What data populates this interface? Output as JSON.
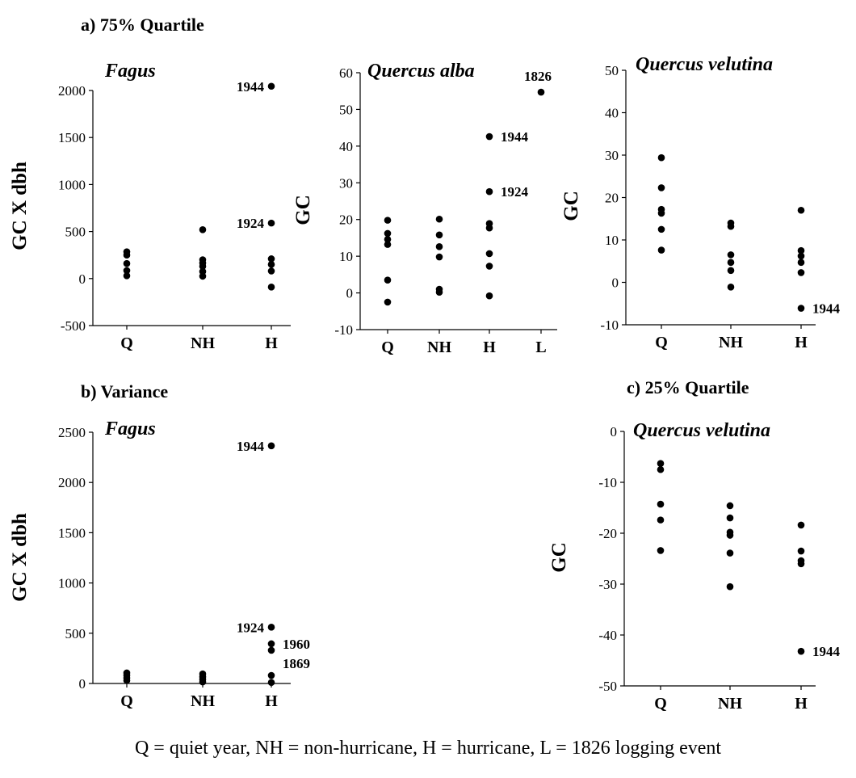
{
  "figure": {
    "caption": "Q = quiet year, NH = non-hurricane, H = hurricane, L = 1826 logging event"
  },
  "sections": [
    {
      "label": "a) 75% Quartile"
    },
    {
      "label": "b) Variance"
    },
    {
      "label": "c) 25% Quartile"
    }
  ],
  "chart_data": [
    {
      "id": "a1",
      "section": "a) 75% Quartile",
      "type": "scatter",
      "title": "Fagus",
      "ylabel": "GC X dbh",
      "categories": [
        "Q",
        "NH",
        "H"
      ],
      "ylim": [
        -500,
        2000
      ],
      "yticks": [
        -500,
        0,
        500,
        1000,
        1500,
        2000
      ],
      "points": [
        {
          "x": "Q",
          "y": 285
        },
        {
          "x": "Q",
          "y": 250
        },
        {
          "x": "Q",
          "y": 160
        },
        {
          "x": "Q",
          "y": 85
        },
        {
          "x": "Q",
          "y": 30
        },
        {
          "x": "NH",
          "y": 520
        },
        {
          "x": "NH",
          "y": 200
        },
        {
          "x": "NH",
          "y": 165
        },
        {
          "x": "NH",
          "y": 130
        },
        {
          "x": "NH",
          "y": 75
        },
        {
          "x": "NH",
          "y": 25
        },
        {
          "x": "H",
          "y": 2045
        },
        {
          "x": "H",
          "y": 590
        },
        {
          "x": "H",
          "y": 210
        },
        {
          "x": "H",
          "y": 150
        },
        {
          "x": "H",
          "y": 80
        },
        {
          "x": "H",
          "y": -90
        }
      ],
      "annotations": [
        {
          "text": "1944",
          "x": "H",
          "y": 2045,
          "side": "left"
        },
        {
          "text": "1924",
          "x": "H",
          "y": 590,
          "side": "left"
        }
      ]
    },
    {
      "id": "a2",
      "section": "a) 75% Quartile",
      "type": "scatter",
      "title": "Quercus alba",
      "ylabel": "GC",
      "categories": [
        "Q",
        "NH",
        "H",
        "L"
      ],
      "ylim": [
        -10,
        60
      ],
      "yticks": [
        -10,
        0,
        10,
        20,
        30,
        40,
        50,
        60
      ],
      "points": [
        {
          "x": "Q",
          "y": 19.8
        },
        {
          "x": "Q",
          "y": 16.2
        },
        {
          "x": "Q",
          "y": 14.6
        },
        {
          "x": "Q",
          "y": 13.2
        },
        {
          "x": "Q",
          "y": 3.5
        },
        {
          "x": "Q",
          "y": -2.5
        },
        {
          "x": "NH",
          "y": 20.1
        },
        {
          "x": "NH",
          "y": 15.8
        },
        {
          "x": "NH",
          "y": 12.6
        },
        {
          "x": "NH",
          "y": 9.8
        },
        {
          "x": "NH",
          "y": 1.0
        },
        {
          "x": "NH",
          "y": 0.2
        },
        {
          "x": "H",
          "y": 42.6
        },
        {
          "x": "H",
          "y": 27.6
        },
        {
          "x": "H",
          "y": 18.9
        },
        {
          "x": "H",
          "y": 17.7
        },
        {
          "x": "H",
          "y": 10.7
        },
        {
          "x": "H",
          "y": 7.3
        },
        {
          "x": "H",
          "y": -0.8
        },
        {
          "x": "L",
          "y": 54.7
        }
      ],
      "annotations": [
        {
          "text": "1826",
          "x": "L",
          "y": 54.7,
          "side": "above"
        },
        {
          "text": "1944",
          "x": "H",
          "y": 42.6,
          "side": "right"
        },
        {
          "text": "1924",
          "x": "H",
          "y": 27.6,
          "side": "right"
        }
      ]
    },
    {
      "id": "a3",
      "section": "a) 75% Quartile",
      "type": "scatter",
      "title": "Quercus velutina",
      "ylabel": "GC",
      "categories": [
        "Q",
        "NH",
        "H"
      ],
      "ylim": [
        -10,
        50
      ],
      "yticks": [
        -10,
        0,
        10,
        20,
        30,
        40,
        50
      ],
      "points": [
        {
          "x": "Q",
          "y": 29.4
        },
        {
          "x": "Q",
          "y": 22.3
        },
        {
          "x": "Q",
          "y": 17.2
        },
        {
          "x": "Q",
          "y": 16.3
        },
        {
          "x": "Q",
          "y": 12.5
        },
        {
          "x": "Q",
          "y": 7.6
        },
        {
          "x": "NH",
          "y": 14.0
        },
        {
          "x": "NH",
          "y": 13.2
        },
        {
          "x": "NH",
          "y": 6.5
        },
        {
          "x": "NH",
          "y": 4.7
        },
        {
          "x": "NH",
          "y": 2.8
        },
        {
          "x": "NH",
          "y": -1.1
        },
        {
          "x": "H",
          "y": 17.0
        },
        {
          "x": "H",
          "y": 7.5
        },
        {
          "x": "H",
          "y": 6.2
        },
        {
          "x": "H",
          "y": 4.7
        },
        {
          "x": "H",
          "y": 2.3
        },
        {
          "x": "H",
          "y": -6.1
        }
      ],
      "annotations": [
        {
          "text": "1944",
          "x": "H",
          "y": -6.1,
          "side": "right"
        }
      ]
    },
    {
      "id": "b1",
      "section": "b) Variance",
      "type": "scatter",
      "title": "Fagus",
      "ylabel": "GC X dbh",
      "categories": [
        "Q",
        "NH",
        "H"
      ],
      "ylim": [
        0,
        2500
      ],
      "yticks": [
        0,
        500,
        1000,
        1500,
        2000,
        2500
      ],
      "points": [
        {
          "x": "Q",
          "y": 105
        },
        {
          "x": "Q",
          "y": 80
        },
        {
          "x": "Q",
          "y": 55
        },
        {
          "x": "Q",
          "y": 30
        },
        {
          "x": "NH",
          "y": 95
        },
        {
          "x": "NH",
          "y": 65
        },
        {
          "x": "NH",
          "y": 40
        },
        {
          "x": "NH",
          "y": 15
        },
        {
          "x": "H",
          "y": 2365
        },
        {
          "x": "H",
          "y": 560
        },
        {
          "x": "H",
          "y": 395
        },
        {
          "x": "H",
          "y": 330
        },
        {
          "x": "H",
          "y": 80
        },
        {
          "x": "H",
          "y": 10
        }
      ],
      "annotations": [
        {
          "text": "1944",
          "x": "H",
          "y": 2365,
          "side": "left"
        },
        {
          "text": "1924",
          "x": "H",
          "y": 560,
          "side": "left"
        },
        {
          "text": "1960",
          "x": "H",
          "y": 395,
          "side": "right"
        },
        {
          "text": "1869",
          "x": "H",
          "y": 330,
          "side": "right-below"
        }
      ]
    },
    {
      "id": "c1",
      "section": "c) 25% Quartile",
      "type": "scatter",
      "title": "Quercus velutina",
      "ylabel": "GC",
      "categories": [
        "Q",
        "NH",
        "H"
      ],
      "ylim": [
        -50,
        0
      ],
      "yticks": [
        -50,
        -40,
        -30,
        -20,
        -10,
        0
      ],
      "points": [
        {
          "x": "Q",
          "y": -6.3
        },
        {
          "x": "Q",
          "y": -7.5
        },
        {
          "x": "Q",
          "y": -14.3
        },
        {
          "x": "Q",
          "y": -17.4
        },
        {
          "x": "Q",
          "y": -23.4
        },
        {
          "x": "NH",
          "y": -14.6
        },
        {
          "x": "NH",
          "y": -17.0
        },
        {
          "x": "NH",
          "y": -19.8
        },
        {
          "x": "NH",
          "y": -20.4
        },
        {
          "x": "NH",
          "y": -23.9
        },
        {
          "x": "NH",
          "y": -30.5
        },
        {
          "x": "H",
          "y": -18.4
        },
        {
          "x": "H",
          "y": -23.5
        },
        {
          "x": "H",
          "y": -25.4
        },
        {
          "x": "H",
          "y": -26.0
        },
        {
          "x": "H",
          "y": -43.2
        }
      ],
      "annotations": [
        {
          "text": "1944",
          "x": "H",
          "y": -43.2,
          "side": "right"
        }
      ]
    }
  ]
}
